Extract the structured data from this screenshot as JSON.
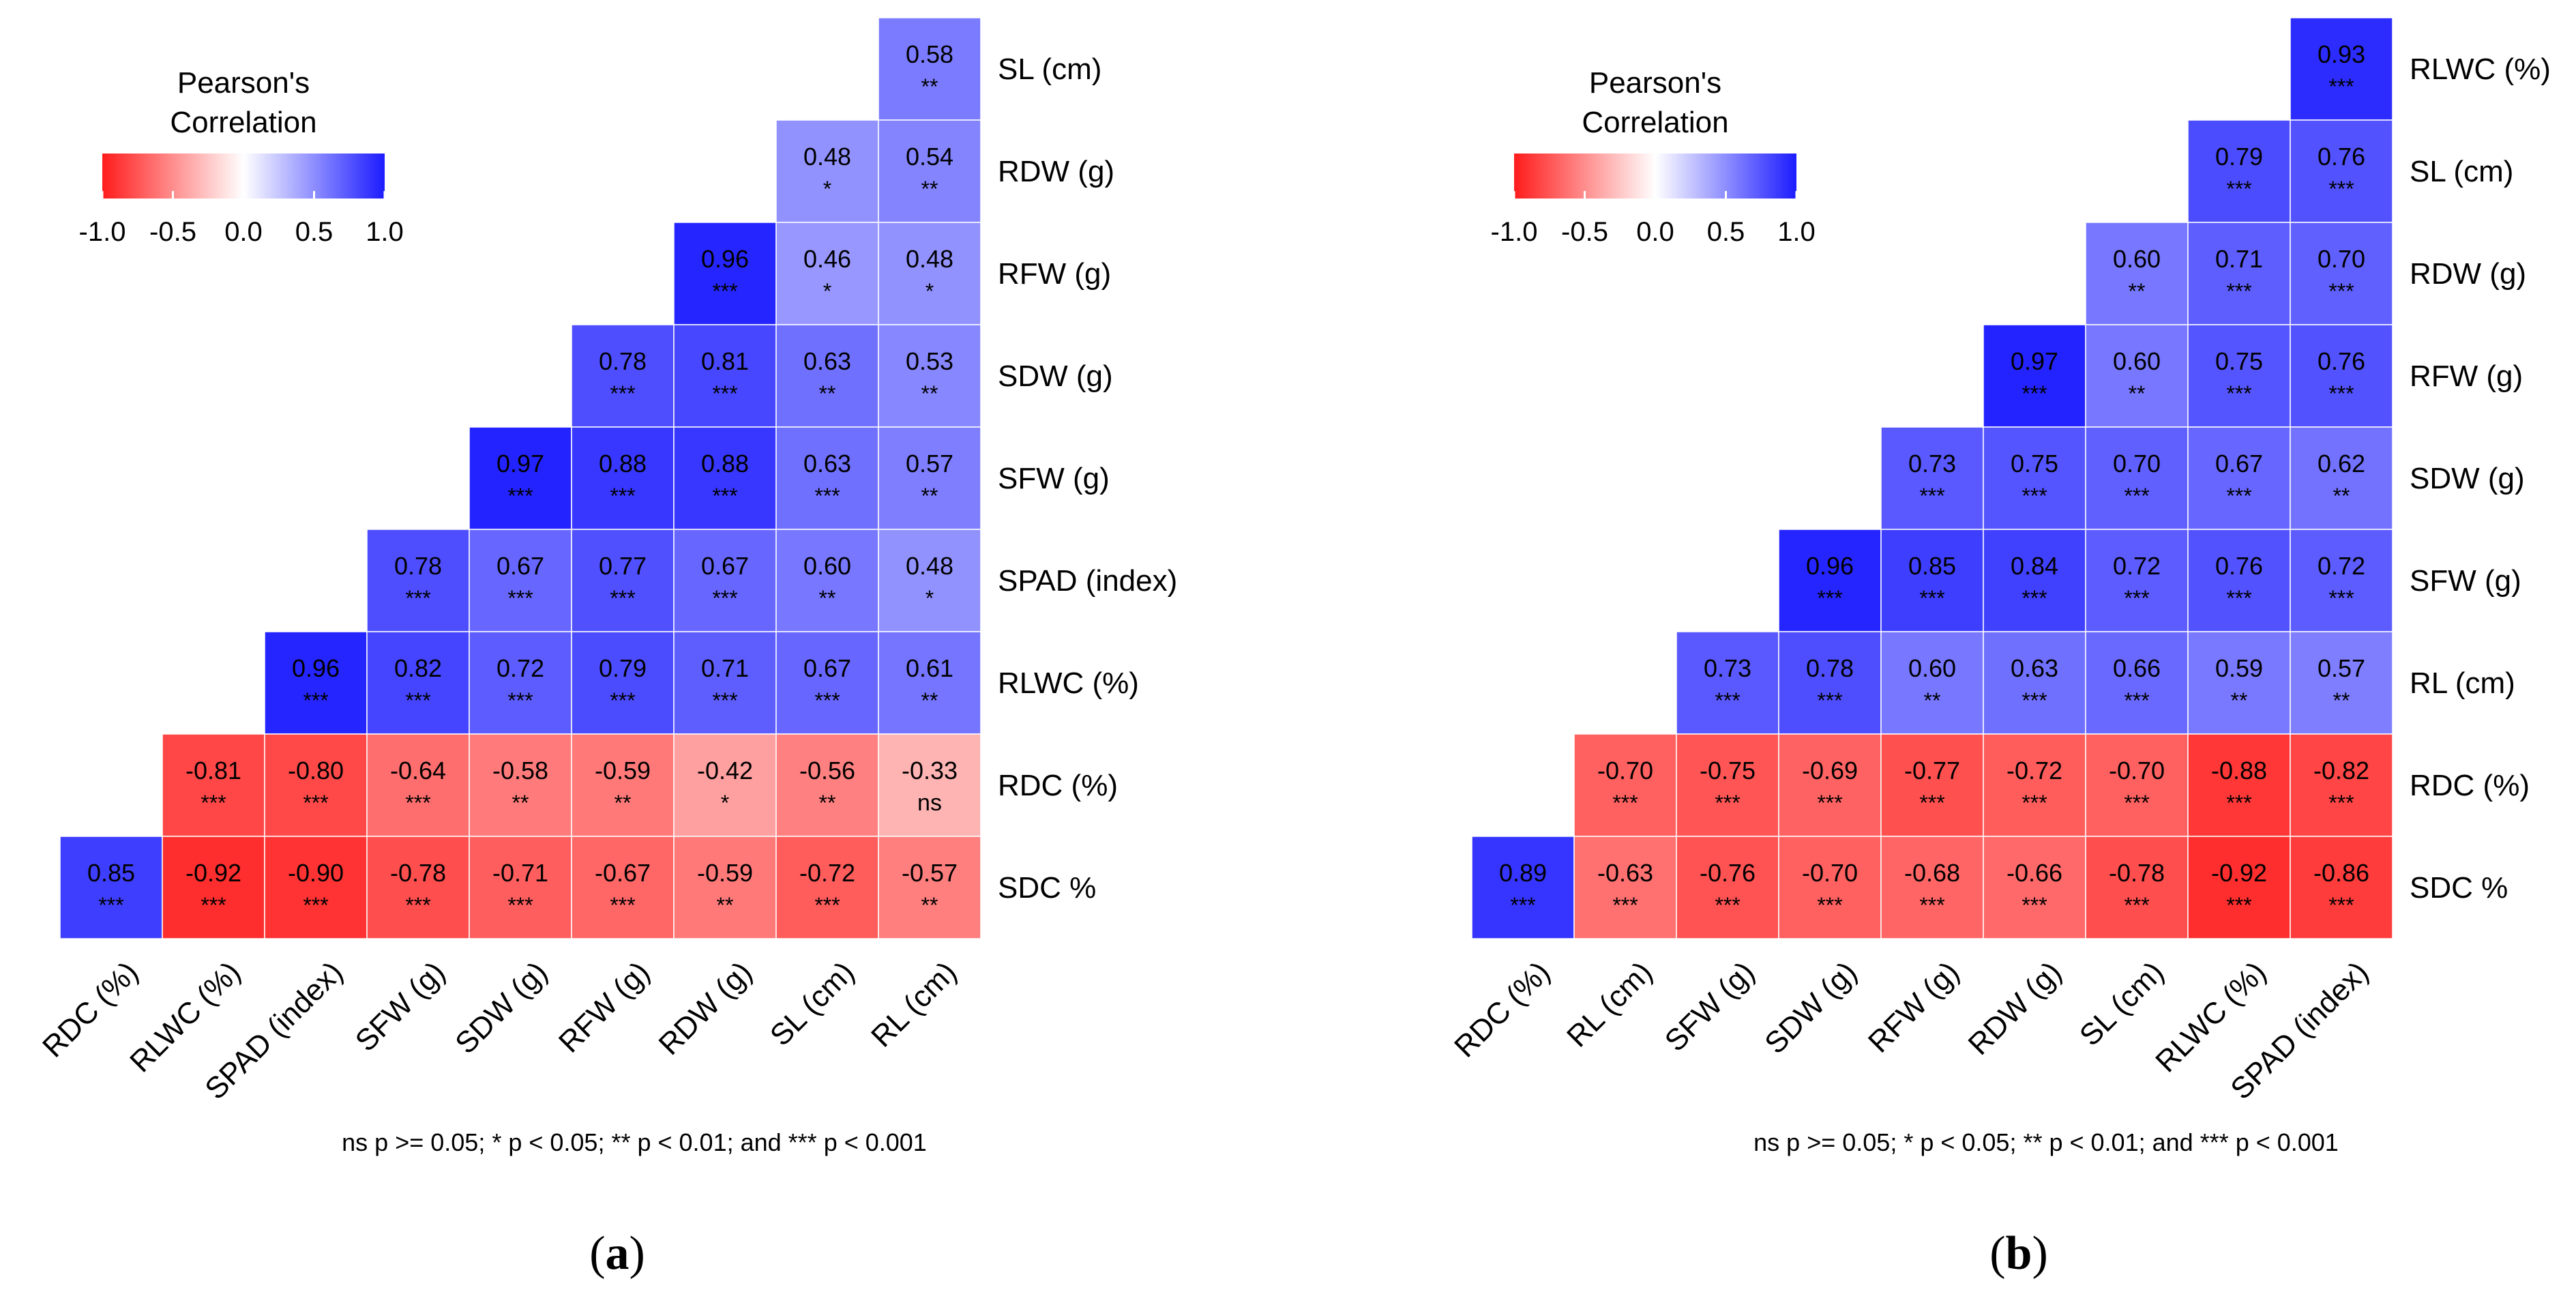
{
  "chart_data": [
    {
      "type": "heatmap",
      "panel_label": "a",
      "legend_title": [
        "Pearson's",
        "Correlation"
      ],
      "legend_ticks": [
        "-1.0",
        "-0.5",
        "0.0",
        "0.5",
        "1.0"
      ],
      "color_range": [
        -1,
        1
      ],
      "x_labels": [
        "RDC (%)",
        "RLWC (%)",
        "SPAD (index)",
        "SFW (g)",
        "SDW (g)",
        "RFW (g)",
        "RDW (g)",
        "SL (cm)",
        "RL (cm)"
      ],
      "y_labels": [
        "SL (cm)",
        "RDW (g)",
        "RFW (g)",
        "SDW (g)",
        "SFW (g)",
        "SPAD (index)",
        "RLWC (%)",
        "RDC (%)",
        "SDC %"
      ],
      "values": [
        [
          null,
          null,
          null,
          null,
          null,
          null,
          null,
          null,
          0.58
        ],
        [
          null,
          null,
          null,
          null,
          null,
          null,
          null,
          0.48,
          0.54
        ],
        [
          null,
          null,
          null,
          null,
          null,
          null,
          0.96,
          0.46,
          0.48
        ],
        [
          null,
          null,
          null,
          null,
          null,
          0.78,
          0.81,
          0.63,
          0.53
        ],
        [
          null,
          null,
          null,
          null,
          0.97,
          0.88,
          0.88,
          0.63,
          0.57
        ],
        [
          null,
          null,
          null,
          0.78,
          0.67,
          0.77,
          0.67,
          0.6,
          0.48
        ],
        [
          null,
          null,
          0.96,
          0.82,
          0.72,
          0.79,
          0.71,
          0.67,
          0.61
        ],
        [
          null,
          -0.81,
          -0.8,
          -0.64,
          -0.58,
          -0.59,
          -0.42,
          -0.56,
          -0.33
        ],
        [
          0.85,
          -0.92,
          -0.9,
          -0.78,
          -0.71,
          -0.67,
          -0.59,
          -0.72,
          -0.57
        ]
      ],
      "significance": [
        [
          null,
          null,
          null,
          null,
          null,
          null,
          null,
          null,
          "**"
        ],
        [
          null,
          null,
          null,
          null,
          null,
          null,
          null,
          "*",
          "**"
        ],
        [
          null,
          null,
          null,
          null,
          null,
          null,
          "***",
          "*",
          "*"
        ],
        [
          null,
          null,
          null,
          null,
          null,
          "***",
          "***",
          "**",
          "**"
        ],
        [
          null,
          null,
          null,
          null,
          "***",
          "***",
          "***",
          "***",
          "**"
        ],
        [
          null,
          null,
          null,
          "***",
          "***",
          "***",
          "***",
          "**",
          "*"
        ],
        [
          null,
          null,
          "***",
          "***",
          "***",
          "***",
          "***",
          "***",
          "**"
        ],
        [
          null,
          "***",
          "***",
          "***",
          "**",
          "**",
          "*",
          "**",
          "ns"
        ],
        [
          "***",
          "***",
          "***",
          "***",
          "***",
          "***",
          "**",
          "***",
          "**"
        ]
      ],
      "footnote": "ns p >= 0.05; * p < 0.05; ** p < 0.01; and *** p < 0.001"
    },
    {
      "type": "heatmap",
      "panel_label": "b",
      "legend_title": [
        "Pearson's",
        "Correlation"
      ],
      "legend_ticks": [
        "-1.0",
        "-0.5",
        "0.0",
        "0.5",
        "1.0"
      ],
      "color_range": [
        -1,
        1
      ],
      "x_labels": [
        "RDC (%)",
        "RL (cm)",
        "SFW (g)",
        "SDW (g)",
        "RFW (g)",
        "RDW (g)",
        "SL (cm)",
        "RLWC (%)",
        "SPAD (index)"
      ],
      "y_labels": [
        "RLWC (%)",
        "SL (cm)",
        "RDW (g)",
        "RFW (g)",
        "SDW (g)",
        "SFW (g)",
        "RL (cm)",
        "RDC (%)",
        "SDC %"
      ],
      "values": [
        [
          null,
          null,
          null,
          null,
          null,
          null,
          null,
          null,
          0.93
        ],
        [
          null,
          null,
          null,
          null,
          null,
          null,
          null,
          0.79,
          0.76
        ],
        [
          null,
          null,
          null,
          null,
          null,
          null,
          0.6,
          0.71,
          0.7
        ],
        [
          null,
          null,
          null,
          null,
          null,
          0.97,
          0.6,
          0.75,
          0.76
        ],
        [
          null,
          null,
          null,
          null,
          0.73,
          0.75,
          0.7,
          0.67,
          0.62
        ],
        [
          null,
          null,
          null,
          0.96,
          0.85,
          0.84,
          0.72,
          0.76,
          0.72
        ],
        [
          null,
          null,
          0.73,
          0.78,
          0.6,
          0.63,
          0.66,
          0.59,
          0.57
        ],
        [
          null,
          -0.7,
          -0.75,
          -0.69,
          -0.77,
          -0.72,
          -0.7,
          -0.88,
          -0.82
        ],
        [
          0.89,
          -0.63,
          -0.76,
          -0.7,
          -0.68,
          -0.66,
          -0.78,
          -0.92,
          -0.86
        ]
      ],
      "significance": [
        [
          null,
          null,
          null,
          null,
          null,
          null,
          null,
          null,
          "***"
        ],
        [
          null,
          null,
          null,
          null,
          null,
          null,
          null,
          "***",
          "***"
        ],
        [
          null,
          null,
          null,
          null,
          null,
          null,
          "**",
          "***",
          "***"
        ],
        [
          null,
          null,
          null,
          null,
          null,
          "***",
          "**",
          "***",
          "***"
        ],
        [
          null,
          null,
          null,
          null,
          "***",
          "***",
          "***",
          "***",
          "**"
        ],
        [
          null,
          null,
          null,
          "***",
          "***",
          "***",
          "***",
          "***",
          "***"
        ],
        [
          null,
          null,
          "***",
          "***",
          "**",
          "***",
          "***",
          "**",
          "**"
        ],
        [
          null,
          "***",
          "***",
          "***",
          "***",
          "***",
          "***",
          "***",
          "***"
        ],
        [
          "***",
          "***",
          "***",
          "***",
          "***",
          "***",
          "***",
          "***",
          "***"
        ]
      ],
      "footnote": "ns p >= 0.05; * p < 0.05; ** p < 0.01; and *** p < 0.001"
    }
  ]
}
